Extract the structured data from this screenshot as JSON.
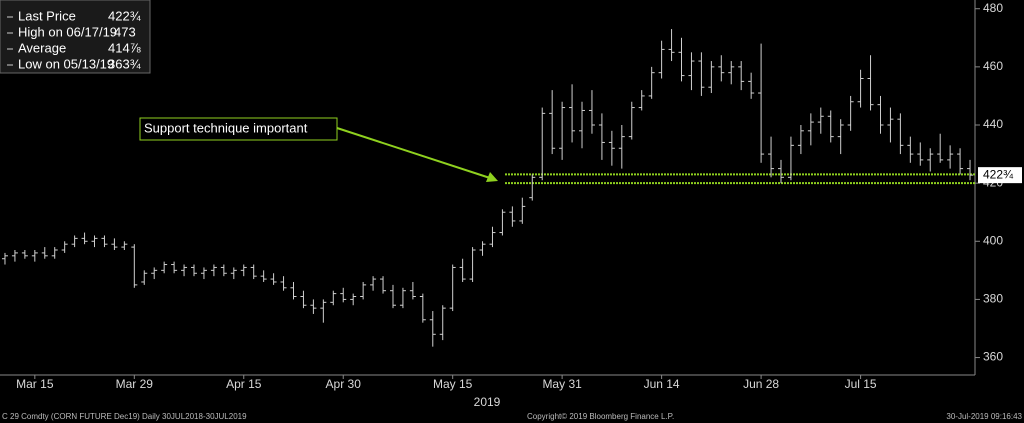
{
  "chart_data": {
    "type": "ohlc",
    "legend_items": [
      {
        "label": "Last Price",
        "value": {
          "value": 422.75,
          "label": "422¾"
        }
      },
      {
        "label": "High on 06/17/19",
        "value": 473
      },
      {
        "label": "Average",
        "value": {
          "value": 414.875,
          "label": "414⅞"
        }
      },
      {
        "label": "Low on 05/13/19",
        "value": {
          "value": 363.75,
          "label": "363¾"
        }
      }
    ],
    "annotation": "Support technique important",
    "support_lines": [
      423,
      420
    ],
    "support_color": "#8fd11f",
    "bar_color": "#d0d0d0",
    "last_price_tag": {
      "value": 422.75,
      "label": "422¾"
    },
    "x_axis_label": "2019",
    "footer": [
      "C 29 Comdty (CORN FUTURE      Dec19)  Daily 30JUL2018-30JUL2019",
      "Copyright© 2019 Bloomberg Finance L.P.",
      "30-Jul-2019 09:16:43"
    ],
    "categories": [
      null,
      null,
      null,
      "Mar 15",
      null,
      null,
      null,
      null,
      null,
      null,
      null,
      null,
      null,
      "Mar 29",
      null,
      null,
      null,
      null,
      null,
      null,
      null,
      null,
      null,
      null,
      "Apr 15",
      null,
      null,
      null,
      null,
      null,
      null,
      null,
      null,
      null,
      "Apr 30",
      null,
      null,
      null,
      null,
      null,
      null,
      null,
      null,
      null,
      null,
      "May 15",
      null,
      null,
      null,
      null,
      null,
      null,
      null,
      null,
      null,
      null,
      "May 31",
      null,
      null,
      null,
      null,
      null,
      null,
      null,
      null,
      null,
      "Jun 14",
      null,
      null,
      null,
      null,
      null,
      null,
      null,
      null,
      null,
      "Jun 28",
      null,
      null,
      null,
      null,
      null,
      null,
      null,
      null,
      null,
      "Jul 15",
      null,
      null,
      null,
      null,
      null,
      null,
      null,
      null,
      null,
      null,
      null
    ],
    "open": [
      394,
      395,
      396,
      395,
      396,
      395,
      397,
      399,
      401,
      400,
      401,
      399,
      398,
      398,
      386,
      389,
      390,
      392,
      390,
      391,
      389,
      390,
      391,
      389,
      390,
      391,
      388,
      387,
      386,
      384,
      381,
      378,
      377,
      379,
      382,
      380,
      381,
      385,
      387,
      383,
      378,
      383,
      381,
      373,
      368,
      377,
      391,
      387,
      397,
      399,
      403,
      410,
      407,
      415,
      422,
      444,
      432,
      446,
      438,
      445,
      440,
      434,
      432,
      436,
      446,
      450,
      458,
      466,
      465,
      457,
      462,
      453,
      460,
      458,
      460,
      455,
      451,
      430,
      425,
      422,
      433,
      438,
      441,
      443,
      436,
      440,
      448,
      456,
      447,
      440,
      442,
      433,
      430,
      428,
      430,
      428,
      430,
      425
    ],
    "high": [
      396,
      397,
      397,
      397,
      398,
      398,
      400,
      402,
      403,
      402,
      402,
      401,
      400,
      399,
      390,
      391,
      393,
      393,
      392,
      392,
      391,
      392,
      392,
      391,
      392,
      392,
      390,
      389,
      388,
      386,
      383,
      380,
      380,
      383,
      384,
      382,
      386,
      388,
      388,
      385,
      384,
      386,
      382,
      376,
      378,
      392,
      394,
      398,
      400,
      405,
      411,
      412,
      415,
      423,
      446,
      452,
      448,
      454,
      448,
      452,
      444,
      438,
      440,
      448,
      452,
      460,
      469,
      473,
      470,
      465,
      465,
      462,
      464,
      462,
      462,
      458,
      468,
      436,
      428,
      436,
      440,
      444,
      446,
      445,
      442,
      450,
      459,
      464,
      450,
      446,
      444,
      436,
      434,
      432,
      437,
      433,
      432,
      428
    ],
    "low": [
      392,
      393,
      394,
      393,
      394,
      394,
      396,
      398,
      399,
      398,
      398,
      397,
      397,
      384,
      385,
      387,
      389,
      389,
      388,
      388,
      387,
      388,
      388,
      387,
      388,
      387,
      386,
      385,
      383,
      380,
      377,
      375,
      372,
      378,
      379,
      378,
      380,
      383,
      382,
      377,
      377,
      380,
      372,
      363.75,
      366,
      376,
      386,
      386,
      395,
      398,
      402,
      405,
      406,
      414,
      421,
      430,
      428,
      434,
      432,
      437,
      428,
      426,
      425,
      435,
      445,
      449,
      456,
      462,
      455,
      452,
      450,
      451,
      455,
      454,
      452,
      449,
      427,
      422,
      420,
      421,
      430,
      433,
      437,
      434,
      430,
      438,
      446,
      445,
      437,
      434,
      430,
      427,
      426,
      424,
      427,
      425,
      423,
      421
    ],
    "close": [
      395,
      396,
      395,
      396,
      395,
      397,
      399,
      401,
      400,
      401,
      399,
      398,
      399,
      385,
      389,
      390,
      392,
      390,
      391,
      389,
      390,
      391,
      389,
      390,
      391,
      388,
      387,
      386,
      384,
      381,
      378,
      377,
      379,
      382,
      380,
      381,
      385,
      387,
      383,
      378,
      383,
      381,
      373,
      368,
      377,
      391,
      387,
      397,
      399,
      403,
      410,
      407,
      412,
      422,
      444,
      432,
      446,
      438,
      445,
      440,
      434,
      432,
      436,
      446,
      450,
      458,
      466,
      465,
      457,
      462,
      453,
      460,
      458,
      460,
      455,
      451,
      430,
      425,
      422,
      433,
      438,
      441,
      443,
      436,
      440,
      448,
      456,
      447,
      440,
      442,
      433,
      430,
      428,
      430,
      428,
      430,
      425,
      422.75
    ],
    "ylim": [
      354,
      483
    ],
    "yticks": [
      360,
      380,
      400,
      420,
      440,
      460,
      480
    ]
  }
}
